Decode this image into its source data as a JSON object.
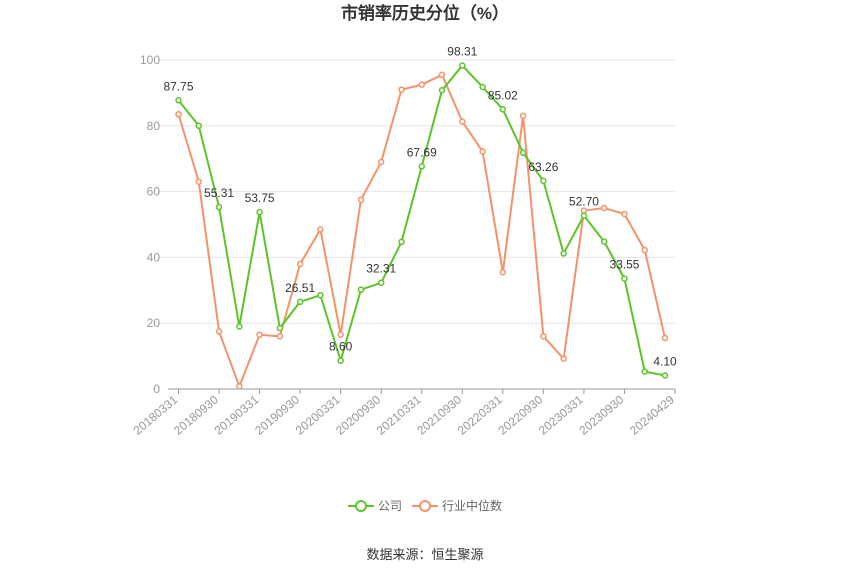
{
  "chart_data": {
    "type": "line",
    "title": "市销率历史分位（%）",
    "xlabel": "",
    "ylabel": "",
    "ylim": [
      0,
      100
    ],
    "yticks": [
      0,
      20,
      40,
      60,
      80,
      100
    ],
    "grid": true,
    "legend_position": "bottom",
    "x": [
      "20180331",
      "20180630",
      "20180930",
      "20181231",
      "20190331",
      "20190630",
      "20190930",
      "20191231",
      "20200331",
      "20200630",
      "20200930",
      "20201231",
      "20210331",
      "20210630",
      "20210930",
      "20211231",
      "20220331",
      "20220630",
      "20220930",
      "20221231",
      "20230331",
      "20230630",
      "20230930",
      "20231231",
      "20240331",
      "20240429"
    ],
    "x_tick_labels": [
      "20180331",
      "20180930",
      "20190331",
      "20190930",
      "20200331",
      "20200930",
      "20210331",
      "20210930",
      "20220331",
      "20220930",
      "20230331",
      "20230930",
      "20240429"
    ],
    "series": [
      {
        "name": "公司",
        "color": "#5cc42a",
        "values": [
          87.75,
          80.0,
          55.31,
          19.0,
          53.75,
          18.5,
          26.51,
          28.5,
          8.6,
          30.2,
          32.31,
          44.7,
          67.69,
          90.8,
          98.31,
          91.8,
          85.02,
          71.8,
          63.26,
          41.2,
          52.7,
          44.8,
          33.55,
          5.3,
          4.1,
          null
        ],
        "value_labels": [
          {
            "index": 0,
            "text": "87.75"
          },
          {
            "index": 2,
            "text": "55.31"
          },
          {
            "index": 4,
            "text": "53.75"
          },
          {
            "index": 6,
            "text": "26.51"
          },
          {
            "index": 8,
            "text": "8.60"
          },
          {
            "index": 10,
            "text": "32.31"
          },
          {
            "index": 12,
            "text": "67.69"
          },
          {
            "index": 14,
            "text": "98.31"
          },
          {
            "index": 16,
            "text": "85.02"
          },
          {
            "index": 18,
            "text": "63.26"
          },
          {
            "index": 20,
            "text": "52.70"
          },
          {
            "index": 22,
            "text": "33.55"
          },
          {
            "index": 24,
            "text": "4.10"
          }
        ]
      },
      {
        "name": "行业中位数",
        "color": "#f4936a",
        "values": [
          83.5,
          63.0,
          17.5,
          0.8,
          16.5,
          16.0,
          38.0,
          48.5,
          16.5,
          57.5,
          69.0,
          91.0,
          92.5,
          95.5,
          81.3,
          72.2,
          35.5,
          83.0,
          16.0,
          9.2,
          54.2,
          55.0,
          53.2,
          42.2,
          15.5,
          null
        ]
      }
    ]
  },
  "source_text": "数据来源：恒生聚源"
}
